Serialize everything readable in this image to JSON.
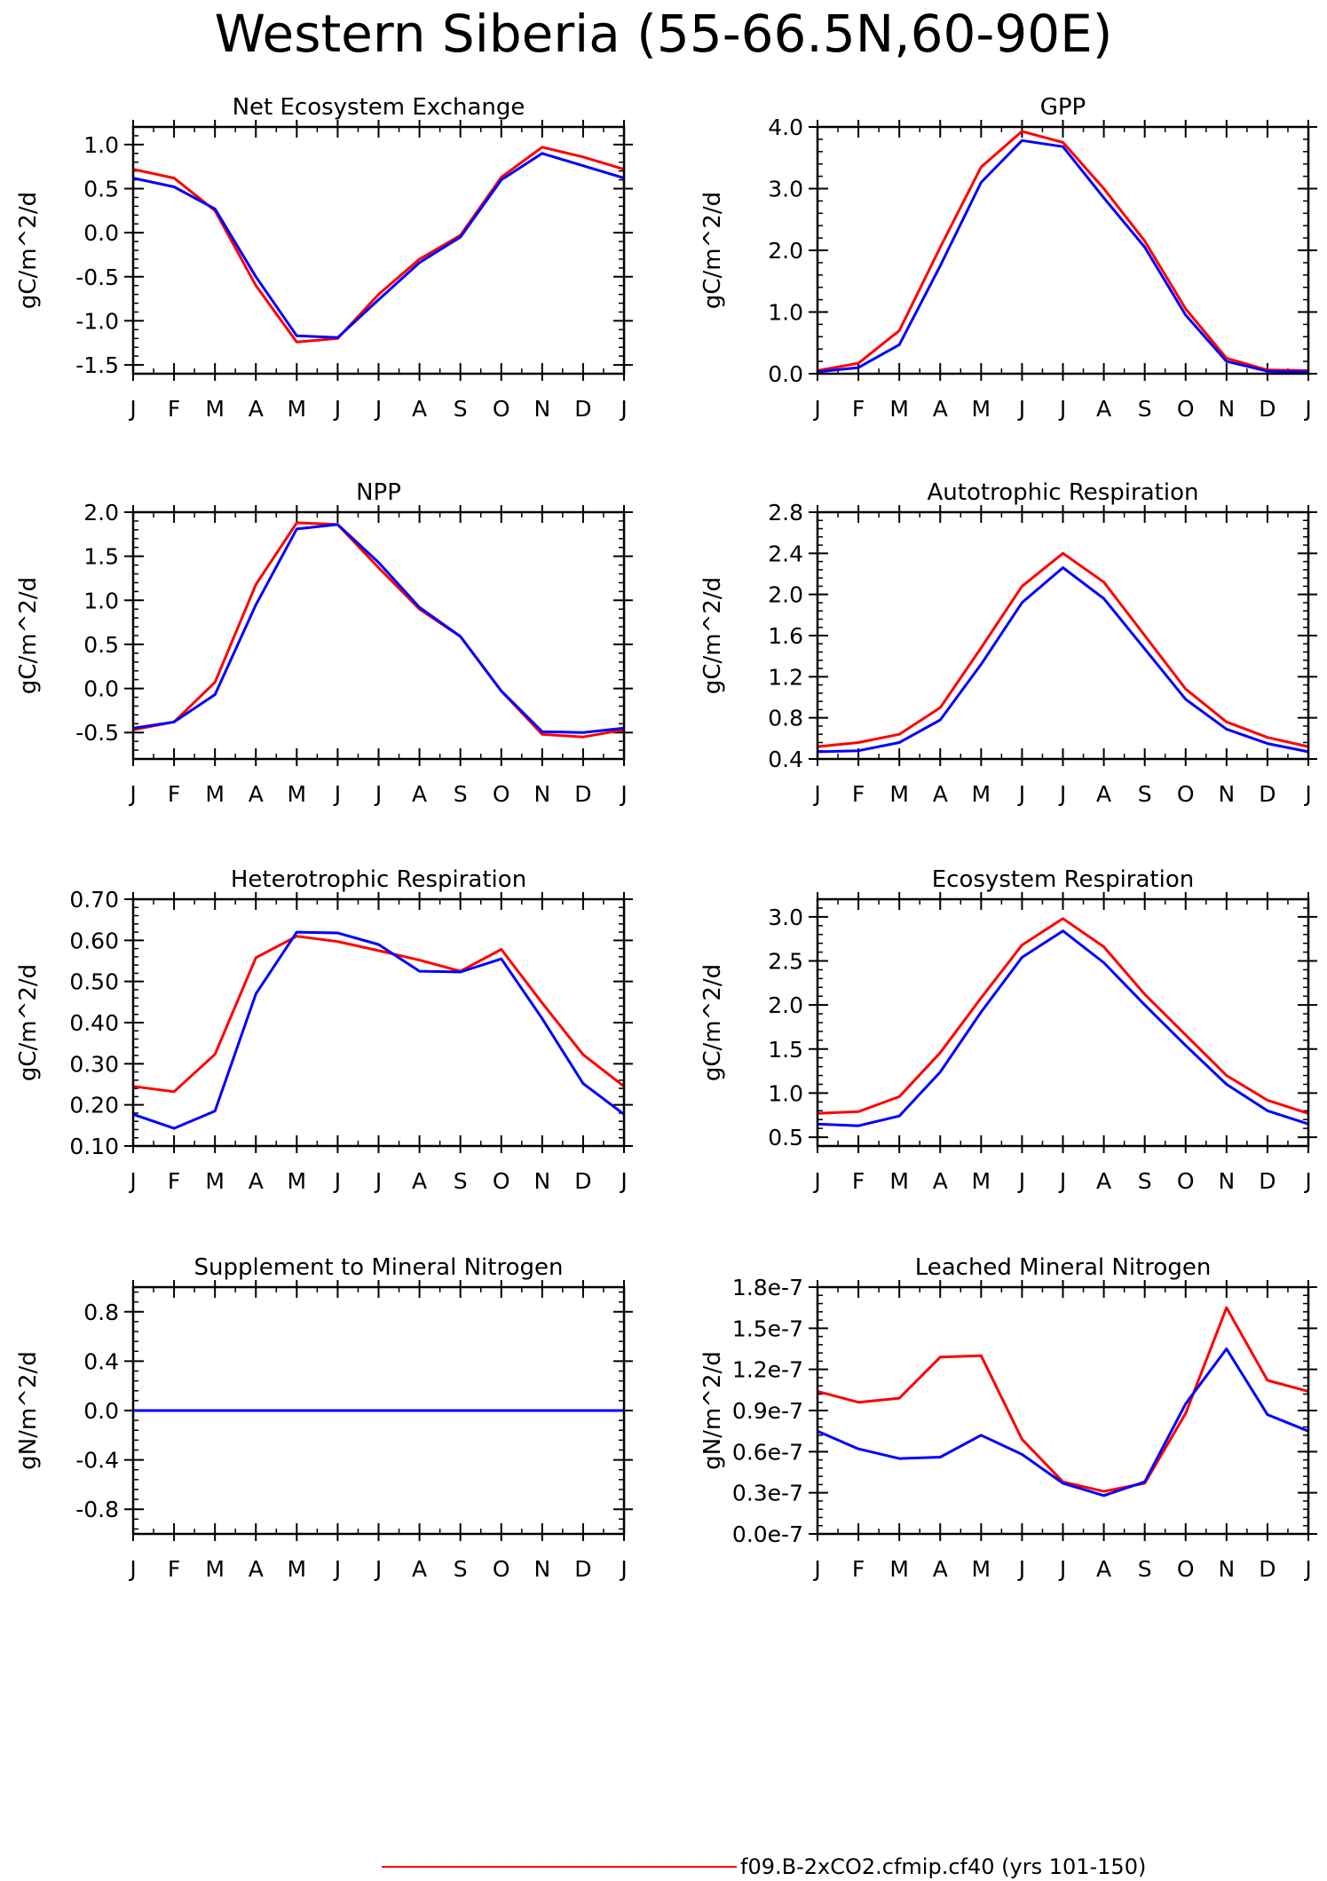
{
  "title": "Western Siberia (55-66.5N,60-90E)",
  "legend": {
    "label": "f09.B-2xCO2.cfmip.cf40 (yrs 101-150)",
    "color": "#ff0000"
  },
  "colors": {
    "series_red": "#ff0000",
    "series_blue": "#0000ff"
  },
  "chart_data": [
    {
      "type": "line",
      "title": "Net Ecosystem Exchange",
      "ylabel": "gC/m^2/d",
      "categories": [
        "J",
        "F",
        "M",
        "A",
        "M",
        "J",
        "J",
        "A",
        "S",
        "O",
        "N",
        "D",
        "J"
      ],
      "ylim": [
        -1.6,
        1.2
      ],
      "yticks": [
        -1.5,
        -1.0,
        -0.5,
        0.0,
        0.5,
        1.0
      ],
      "ytick_labels": [
        "-1.5",
        "-1.0",
        "-0.5",
        "0.0",
        "0.5",
        "1.0"
      ],
      "series": [
        {
          "color": "#ff0000",
          "values": [
            0.72,
            0.62,
            0.25,
            -0.6,
            -1.24,
            -1.2,
            -0.7,
            -0.3,
            -0.03,
            0.63,
            0.97,
            0.86,
            0.72
          ]
        },
        {
          "color": "#0000ff",
          "values": [
            0.62,
            0.52,
            0.27,
            -0.5,
            -1.17,
            -1.19,
            -0.76,
            -0.34,
            -0.05,
            0.6,
            0.9,
            0.76,
            0.62
          ]
        }
      ]
    },
    {
      "type": "line",
      "title": "GPP",
      "ylabel": "gC/m^2/d",
      "categories": [
        "J",
        "F",
        "M",
        "A",
        "M",
        "J",
        "J",
        "A",
        "S",
        "O",
        "N",
        "D",
        "J"
      ],
      "ylim": [
        0.0,
        4.0
      ],
      "yticks": [
        0.0,
        1.0,
        2.0,
        3.0,
        4.0
      ],
      "ytick_labels": [
        "0.0",
        "1.0",
        "2.0",
        "3.0",
        "4.0"
      ],
      "series": [
        {
          "color": "#ff0000",
          "values": [
            0.05,
            0.17,
            0.7,
            2.05,
            3.35,
            3.93,
            3.75,
            3.0,
            2.15,
            1.05,
            0.25,
            0.06,
            0.05
          ]
        },
        {
          "color": "#0000ff",
          "values": [
            0.03,
            0.1,
            0.47,
            1.75,
            3.1,
            3.78,
            3.68,
            2.85,
            2.05,
            0.95,
            0.2,
            0.04,
            0.03
          ]
        }
      ]
    },
    {
      "type": "line",
      "title": "NPP",
      "ylabel": "gC/m^2/d",
      "categories": [
        "J",
        "F",
        "M",
        "A",
        "M",
        "J",
        "J",
        "A",
        "S",
        "O",
        "N",
        "D",
        "J"
      ],
      "ylim": [
        -0.8,
        2.0
      ],
      "yticks": [
        -0.5,
        0.0,
        0.5,
        1.0,
        1.5,
        2.0
      ],
      "ytick_labels": [
        "-0.5",
        "0.0",
        "0.5",
        "1.0",
        "1.5",
        "2.0"
      ],
      "series": [
        {
          "color": "#ff0000",
          "values": [
            -0.47,
            -0.38,
            0.07,
            1.18,
            1.88,
            1.86,
            1.37,
            0.9,
            0.59,
            -0.03,
            -0.52,
            -0.55,
            -0.47
          ]
        },
        {
          "color": "#0000ff",
          "values": [
            -0.45,
            -0.38,
            -0.07,
            0.95,
            1.81,
            1.86,
            1.43,
            0.92,
            0.59,
            -0.03,
            -0.49,
            -0.5,
            -0.45
          ]
        }
      ]
    },
    {
      "type": "line",
      "title": "Autotrophic Respiration",
      "ylabel": "gC/m^2/d",
      "categories": [
        "J",
        "F",
        "M",
        "A",
        "M",
        "J",
        "J",
        "A",
        "S",
        "O",
        "N",
        "D",
        "J"
      ],
      "ylim": [
        0.4,
        2.8
      ],
      "yticks": [
        0.4,
        0.8,
        1.2,
        1.6,
        2.0,
        2.4,
        2.8
      ],
      "ytick_labels": [
        "0.4",
        "0.8",
        "1.2",
        "1.6",
        "2.0",
        "2.4",
        "2.8"
      ],
      "series": [
        {
          "color": "#ff0000",
          "values": [
            0.52,
            0.56,
            0.64,
            0.9,
            1.48,
            2.08,
            2.4,
            2.12,
            1.6,
            1.08,
            0.76,
            0.61,
            0.52
          ]
        },
        {
          "color": "#0000ff",
          "values": [
            0.47,
            0.48,
            0.56,
            0.78,
            1.32,
            1.92,
            2.26,
            1.96,
            1.47,
            0.98,
            0.69,
            0.55,
            0.47
          ]
        }
      ]
    },
    {
      "type": "line",
      "title": "Heterotrophic Respiration",
      "ylabel": "gC/m^2/d",
      "categories": [
        "J",
        "F",
        "M",
        "A",
        "M",
        "J",
        "J",
        "A",
        "S",
        "O",
        "N",
        "D",
        "J"
      ],
      "ylim": [
        0.1,
        0.7
      ],
      "yticks": [
        0.1,
        0.2,
        0.3,
        0.4,
        0.5,
        0.6,
        0.7
      ],
      "ytick_labels": [
        "0.10",
        "0.20",
        "0.30",
        "0.40",
        "0.50",
        "0.60",
        "0.70"
      ],
      "series": [
        {
          "color": "#ff0000",
          "values": [
            0.245,
            0.232,
            0.323,
            0.558,
            0.61,
            0.597,
            0.575,
            0.552,
            0.525,
            0.578,
            0.448,
            0.322,
            0.245
          ]
        },
        {
          "color": "#0000ff",
          "values": [
            0.177,
            0.143,
            0.185,
            0.47,
            0.62,
            0.618,
            0.59,
            0.525,
            0.523,
            0.555,
            0.41,
            0.252,
            0.177
          ]
        }
      ]
    },
    {
      "type": "line",
      "title": "Ecosystem Respiration",
      "ylabel": "gC/m^2/d",
      "categories": [
        "J",
        "F",
        "M",
        "A",
        "M",
        "J",
        "J",
        "A",
        "S",
        "O",
        "N",
        "D",
        "J"
      ],
      "ylim": [
        0.4,
        3.2
      ],
      "yticks": [
        0.5,
        1.0,
        1.5,
        2.0,
        2.5,
        3.0
      ],
      "ytick_labels": [
        "0.5",
        "1.0",
        "1.5",
        "2.0",
        "2.5",
        "3.0"
      ],
      "series": [
        {
          "color": "#ff0000",
          "values": [
            0.77,
            0.79,
            0.96,
            1.46,
            2.08,
            2.68,
            2.98,
            2.66,
            2.12,
            1.66,
            1.2,
            0.92,
            0.77
          ]
        },
        {
          "color": "#0000ff",
          "values": [
            0.65,
            0.63,
            0.74,
            1.24,
            1.92,
            2.54,
            2.84,
            2.48,
            2.0,
            1.54,
            1.1,
            0.8,
            0.65
          ]
        }
      ]
    },
    {
      "type": "line",
      "title": "Supplement to Mineral Nitrogen",
      "ylabel": "gN/m^2/d",
      "categories": [
        "J",
        "F",
        "M",
        "A",
        "M",
        "J",
        "J",
        "A",
        "S",
        "O",
        "N",
        "D",
        "J"
      ],
      "ylim": [
        -1.0,
        1.0
      ],
      "yticks": [
        -0.8,
        -0.4,
        0.0,
        0.4,
        0.8
      ],
      "ytick_labels": [
        "-0.8",
        "-0.4",
        "0.0",
        "0.4",
        "0.8"
      ],
      "series": [
        {
          "color": "#ff0000",
          "values": [
            0,
            0,
            0,
            0,
            0,
            0,
            0,
            0,
            0,
            0,
            0,
            0,
            0
          ]
        },
        {
          "color": "#0000ff",
          "values": [
            0,
            0,
            0,
            0,
            0,
            0,
            0,
            0,
            0,
            0,
            0,
            0,
            0
          ]
        }
      ]
    },
    {
      "type": "line",
      "title": "Leached Mineral Nitrogen",
      "ylabel": "gN/m^2/d",
      "categories": [
        "J",
        "F",
        "M",
        "A",
        "M",
        "J",
        "J",
        "A",
        "S",
        "O",
        "N",
        "D",
        "J"
      ],
      "ylim": [
        0.0,
        1.8e-07
      ],
      "yticks": [
        0.0,
        3e-08,
        6e-08,
        9e-08,
        1.2e-07,
        1.5e-07,
        1.8e-07
      ],
      "ytick_labels": [
        "0.0e-7",
        "0.3e-7",
        "0.6e-7",
        "0.9e-7",
        "1.2e-7",
        "1.5e-7",
        "1.8e-7"
      ],
      "series": [
        {
          "color": "#ff0000",
          "values": [
            1.04e-07,
            9.6e-08,
            9.9e-08,
            1.29e-07,
            1.3e-07,
            6.9e-08,
            3.8e-08,
            3.1e-08,
            3.7e-08,
            8.8e-08,
            1.65e-07,
            1.12e-07,
            1.04e-07
          ]
        },
        {
          "color": "#0000ff",
          "values": [
            7.5e-08,
            6.2e-08,
            5.5e-08,
            5.6e-08,
            7.2e-08,
            5.8e-08,
            3.7e-08,
            2.8e-08,
            3.8e-08,
            9.5e-08,
            1.35e-07,
            8.7e-08,
            7.5e-08
          ]
        }
      ]
    }
  ]
}
